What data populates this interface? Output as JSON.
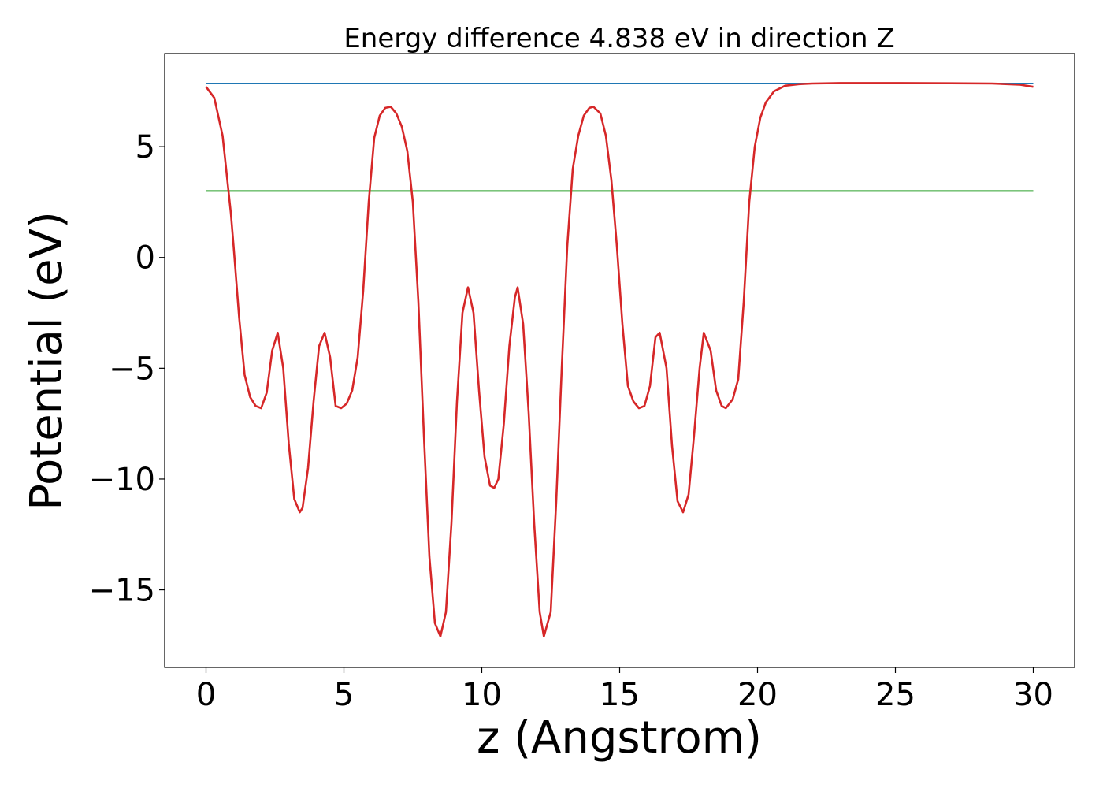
{
  "chart_data": {
    "type": "line",
    "title": "Energy difference 4.838 eV in direction Z",
    "xlabel": "z (Angstrom)",
    "ylabel": "Potential (eV)",
    "xlim": [
      -1.5,
      31.5
    ],
    "ylim": [
      -18.5,
      9.2
    ],
    "xticks": [
      0,
      5,
      10,
      15,
      20,
      25,
      30
    ],
    "yticks": [
      5,
      0,
      -5,
      -10,
      -15
    ],
    "ytick_labels": [
      "5",
      "0",
      "−5",
      "−10",
      "−15"
    ],
    "grid": false,
    "series": [
      {
        "color": "#1f77b4",
        "x": [
          0,
          30
        ],
        "y": [
          7.85,
          7.85
        ]
      },
      {
        "color": "#2ca02c",
        "x": [
          0,
          30
        ],
        "y": [
          3.0,
          3.0
        ]
      },
      {
        "color": "#d62728",
        "x": [
          0.0,
          0.3,
          0.6,
          0.9,
          1.0,
          1.2,
          1.4,
          1.6,
          1.8,
          2.0,
          2.2,
          2.4,
          2.6,
          2.8,
          3.0,
          3.2,
          3.4,
          3.5,
          3.7,
          3.9,
          4.1,
          4.3,
          4.5,
          4.7,
          4.9,
          5.1,
          5.3,
          5.5,
          5.7,
          5.9,
          6.1,
          6.3,
          6.5,
          6.7,
          6.9,
          7.1,
          7.3,
          7.5,
          7.7,
          7.9,
          8.1,
          8.3,
          8.5,
          8.7,
          8.9,
          9.1,
          9.3,
          9.5,
          9.7,
          9.9,
          10.1,
          10.3,
          10.45,
          10.6,
          10.8,
          11.0,
          11.2,
          11.3,
          11.5,
          11.7,
          11.9,
          12.1,
          12.25,
          12.5,
          12.7,
          12.9,
          13.1,
          13.3,
          13.5,
          13.7,
          13.9,
          14.05,
          14.3,
          14.5,
          14.7,
          14.9,
          15.1,
          15.3,
          15.5,
          15.7,
          15.9,
          16.1,
          16.3,
          16.45,
          16.7,
          16.9,
          17.1,
          17.3,
          17.5,
          17.7,
          17.9,
          18.05,
          18.3,
          18.5,
          18.7,
          18.85,
          19.1,
          19.3,
          19.5,
          19.7,
          19.9,
          20.1,
          20.3,
          20.6,
          21.0,
          21.5,
          22.0,
          23.0,
          25.0,
          27.0,
          28.5,
          29.5,
          30.0
        ],
        "y": [
          7.7,
          7.2,
          5.5,
          2.0,
          0.5,
          -2.7,
          -5.3,
          -6.3,
          -6.7,
          -6.8,
          -6.1,
          -4.2,
          -3.4,
          -5.0,
          -8.4,
          -10.9,
          -11.5,
          -11.3,
          -9.5,
          -6.5,
          -4.0,
          -3.4,
          -4.5,
          -6.7,
          -6.8,
          -6.6,
          -6.0,
          -4.5,
          -1.5,
          2.5,
          5.4,
          6.4,
          6.75,
          6.8,
          6.5,
          5.9,
          4.8,
          2.5,
          -2.0,
          -8.0,
          -13.5,
          -16.5,
          -17.1,
          -16.0,
          -12.0,
          -6.5,
          -2.5,
          -1.35,
          -2.5,
          -6.0,
          -9.0,
          -10.3,
          -10.4,
          -10.0,
          -7.5,
          -4.0,
          -1.8,
          -1.35,
          -3.0,
          -7.0,
          -12.0,
          -16.0,
          -17.1,
          -16.0,
          -11.0,
          -5.0,
          0.5,
          4.0,
          5.5,
          6.4,
          6.75,
          6.8,
          6.5,
          5.5,
          3.5,
          0.5,
          -3.0,
          -5.8,
          -6.5,
          -6.8,
          -6.7,
          -5.8,
          -3.6,
          -3.4,
          -5.0,
          -8.5,
          -11.0,
          -11.5,
          -10.7,
          -8.0,
          -5.0,
          -3.4,
          -4.2,
          -6.0,
          -6.7,
          -6.8,
          -6.4,
          -5.5,
          -2.0,
          2.5,
          5.0,
          6.3,
          7.0,
          7.5,
          7.75,
          7.82,
          7.85,
          7.87,
          7.87,
          7.86,
          7.85,
          7.8,
          7.7
        ]
      }
    ]
  }
}
